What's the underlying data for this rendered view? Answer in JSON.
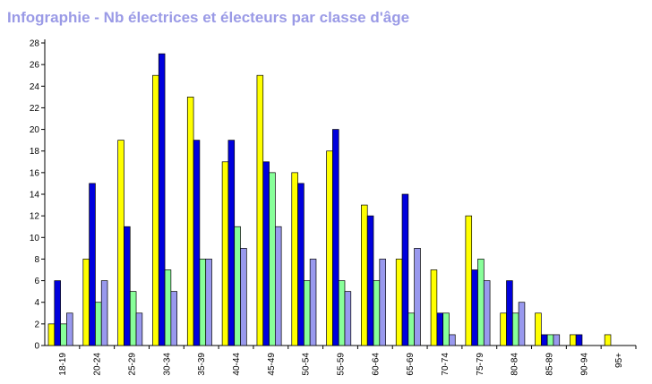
{
  "chart_data": {
    "type": "bar",
    "title": "Infographie - Nb électrices et électeurs par classe d'âge",
    "xlabel": "",
    "ylabel": "",
    "ylim": [
      0,
      28
    ],
    "ytick_step": 2,
    "grid": false,
    "legend": "none",
    "categories": [
      "18-19",
      "20-24",
      "25-29",
      "30-34",
      "35-39",
      "40-44",
      "45-49",
      "50-54",
      "55-59",
      "60-64",
      "65-69",
      "70-74",
      "75-79",
      "80-84",
      "85-89",
      "90-94",
      "95+"
    ],
    "series": [
      {
        "color": "#ffff00",
        "values": [
          2,
          8,
          19,
          25,
          23,
          17,
          25,
          16,
          18,
          13,
          8,
          7,
          12,
          3,
          3,
          1,
          1
        ]
      },
      {
        "color": "#0000dd",
        "values": [
          6,
          15,
          11,
          27,
          19,
          19,
          17,
          15,
          20,
          12,
          14,
          3,
          7,
          6,
          1,
          1,
          0
        ]
      },
      {
        "color": "#88ff99",
        "values": [
          2,
          4,
          5,
          7,
          8,
          11,
          16,
          6,
          6,
          6,
          3,
          3,
          8,
          3,
          1,
          0,
          0
        ]
      },
      {
        "color": "#9999ee",
        "values": [
          3,
          6,
          3,
          5,
          8,
          9,
          11,
          8,
          5,
          8,
          9,
          1,
          6,
          4,
          1,
          0,
          0
        ]
      }
    ]
  }
}
